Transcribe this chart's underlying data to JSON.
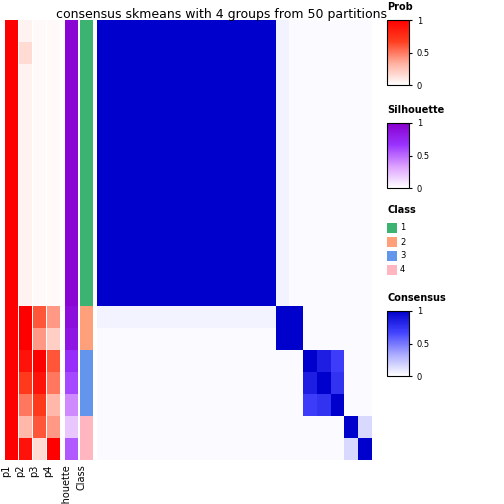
{
  "title": "consensus skmeans with 4 groups from 50 partitions",
  "n_samples": 20,
  "class_sizes": [
    13,
    2,
    3,
    2
  ],
  "class_colors_map": {
    "1": "#3CB371",
    "2": "#FFA07A",
    "3": "#6495ED",
    "4": "#FFB6C1"
  },
  "prob_p1": [
    1.0,
    1.0,
    1.0,
    1.0,
    1.0,
    1.0,
    1.0,
    1.0,
    1.0,
    1.0,
    1.0,
    1.0,
    1.0,
    1.0,
    1.0,
    1.0,
    1.0,
    1.0,
    1.0,
    1.0
  ],
  "prob_p2": [
    0.05,
    0.15,
    0.05,
    0.05,
    0.05,
    0.05,
    0.05,
    0.05,
    0.05,
    0.05,
    0.05,
    0.05,
    0.05,
    1.0,
    1.0,
    0.9,
    0.7,
    0.5,
    0.3,
    0.9
  ],
  "prob_p3": [
    0.02,
    0.02,
    0.02,
    0.02,
    0.02,
    0.02,
    0.02,
    0.02,
    0.02,
    0.02,
    0.02,
    0.02,
    0.02,
    0.6,
    0.4,
    1.0,
    0.9,
    0.7,
    0.6,
    0.15
  ],
  "prob_p4": [
    0.02,
    0.02,
    0.02,
    0.02,
    0.02,
    0.02,
    0.02,
    0.02,
    0.02,
    0.02,
    0.02,
    0.02,
    0.02,
    0.4,
    0.2,
    0.6,
    0.5,
    0.3,
    0.4,
    1.0
  ],
  "silhouette": [
    0.95,
    0.95,
    0.95,
    0.95,
    0.95,
    0.95,
    0.95,
    0.95,
    0.95,
    0.95,
    0.95,
    0.95,
    0.95,
    0.9,
    0.85,
    0.7,
    0.6,
    0.4,
    0.2,
    0.55
  ],
  "class_assign": [
    1,
    1,
    1,
    1,
    1,
    1,
    1,
    1,
    1,
    1,
    1,
    1,
    1,
    2,
    2,
    3,
    3,
    3,
    4,
    4
  ],
  "consensus_matrix": [
    [
      1.0,
      1.0,
      1.0,
      1.0,
      1.0,
      1.0,
      1.0,
      1.0,
      1.0,
      1.0,
      1.0,
      1.0,
      1.0,
      0.05,
      0.02,
      0.02,
      0.02,
      0.02,
      0.02,
      0.02
    ],
    [
      1.0,
      1.0,
      1.0,
      1.0,
      1.0,
      1.0,
      1.0,
      1.0,
      1.0,
      1.0,
      1.0,
      1.0,
      1.0,
      0.05,
      0.02,
      0.02,
      0.02,
      0.02,
      0.02,
      0.02
    ],
    [
      1.0,
      1.0,
      1.0,
      1.0,
      1.0,
      1.0,
      1.0,
      1.0,
      1.0,
      1.0,
      1.0,
      1.0,
      1.0,
      0.05,
      0.02,
      0.02,
      0.02,
      0.02,
      0.02,
      0.02
    ],
    [
      1.0,
      1.0,
      1.0,
      1.0,
      1.0,
      1.0,
      1.0,
      1.0,
      1.0,
      1.0,
      1.0,
      1.0,
      1.0,
      0.05,
      0.02,
      0.02,
      0.02,
      0.02,
      0.02,
      0.02
    ],
    [
      1.0,
      1.0,
      1.0,
      1.0,
      1.0,
      1.0,
      1.0,
      1.0,
      1.0,
      1.0,
      1.0,
      1.0,
      1.0,
      0.05,
      0.02,
      0.02,
      0.02,
      0.02,
      0.02,
      0.02
    ],
    [
      1.0,
      1.0,
      1.0,
      1.0,
      1.0,
      1.0,
      1.0,
      1.0,
      1.0,
      1.0,
      1.0,
      1.0,
      1.0,
      0.05,
      0.02,
      0.02,
      0.02,
      0.02,
      0.02,
      0.02
    ],
    [
      1.0,
      1.0,
      1.0,
      1.0,
      1.0,
      1.0,
      1.0,
      1.0,
      1.0,
      1.0,
      1.0,
      1.0,
      1.0,
      0.05,
      0.02,
      0.02,
      0.02,
      0.02,
      0.02,
      0.02
    ],
    [
      1.0,
      1.0,
      1.0,
      1.0,
      1.0,
      1.0,
      1.0,
      1.0,
      1.0,
      1.0,
      1.0,
      1.0,
      1.0,
      0.05,
      0.02,
      0.02,
      0.02,
      0.02,
      0.02,
      0.02
    ],
    [
      1.0,
      1.0,
      1.0,
      1.0,
      1.0,
      1.0,
      1.0,
      1.0,
      1.0,
      1.0,
      1.0,
      1.0,
      1.0,
      0.05,
      0.02,
      0.02,
      0.02,
      0.02,
      0.02,
      0.02
    ],
    [
      1.0,
      1.0,
      1.0,
      1.0,
      1.0,
      1.0,
      1.0,
      1.0,
      1.0,
      1.0,
      1.0,
      1.0,
      1.0,
      0.05,
      0.02,
      0.02,
      0.02,
      0.02,
      0.02,
      0.02
    ],
    [
      1.0,
      1.0,
      1.0,
      1.0,
      1.0,
      1.0,
      1.0,
      1.0,
      1.0,
      1.0,
      1.0,
      1.0,
      1.0,
      0.05,
      0.02,
      0.02,
      0.02,
      0.02,
      0.02,
      0.02
    ],
    [
      1.0,
      1.0,
      1.0,
      1.0,
      1.0,
      1.0,
      1.0,
      1.0,
      1.0,
      1.0,
      1.0,
      1.0,
      1.0,
      0.05,
      0.02,
      0.02,
      0.02,
      0.02,
      0.02,
      0.02
    ],
    [
      1.0,
      1.0,
      1.0,
      1.0,
      1.0,
      1.0,
      1.0,
      1.0,
      1.0,
      1.0,
      1.0,
      1.0,
      1.0,
      0.05,
      0.02,
      0.02,
      0.02,
      0.02,
      0.02,
      0.02
    ],
    [
      0.05,
      0.05,
      0.05,
      0.05,
      0.05,
      0.05,
      0.05,
      0.05,
      0.05,
      0.05,
      0.05,
      0.05,
      0.05,
      1.0,
      1.0,
      0.02,
      0.02,
      0.02,
      0.02,
      0.02
    ],
    [
      0.02,
      0.02,
      0.02,
      0.02,
      0.02,
      0.02,
      0.02,
      0.02,
      0.02,
      0.02,
      0.02,
      0.02,
      0.02,
      1.0,
      1.0,
      0.02,
      0.02,
      0.02,
      0.02,
      0.02
    ],
    [
      0.02,
      0.02,
      0.02,
      0.02,
      0.02,
      0.02,
      0.02,
      0.02,
      0.02,
      0.02,
      0.02,
      0.02,
      0.02,
      0.02,
      0.02,
      1.0,
      0.85,
      0.7,
      0.02,
      0.02
    ],
    [
      0.02,
      0.02,
      0.02,
      0.02,
      0.02,
      0.02,
      0.02,
      0.02,
      0.02,
      0.02,
      0.02,
      0.02,
      0.02,
      0.02,
      0.02,
      0.85,
      1.0,
      0.75,
      0.02,
      0.02
    ],
    [
      0.02,
      0.02,
      0.02,
      0.02,
      0.02,
      0.02,
      0.02,
      0.02,
      0.02,
      0.02,
      0.02,
      0.02,
      0.02,
      0.02,
      0.02,
      0.7,
      0.75,
      1.0,
      0.02,
      0.02
    ],
    [
      0.02,
      0.02,
      0.02,
      0.02,
      0.02,
      0.02,
      0.02,
      0.02,
      0.02,
      0.02,
      0.02,
      0.02,
      0.02,
      0.02,
      0.02,
      0.02,
      0.02,
      0.02,
      1.0,
      0.15
    ],
    [
      0.02,
      0.02,
      0.02,
      0.02,
      0.02,
      0.02,
      0.02,
      0.02,
      0.02,
      0.02,
      0.02,
      0.02,
      0.02,
      0.02,
      0.02,
      0.02,
      0.02,
      0.02,
      0.15,
      1.0
    ]
  ],
  "title_fontsize": 9,
  "label_fontsize": 7,
  "legend_label_fontsize": 7,
  "tick_fontsize": 6
}
